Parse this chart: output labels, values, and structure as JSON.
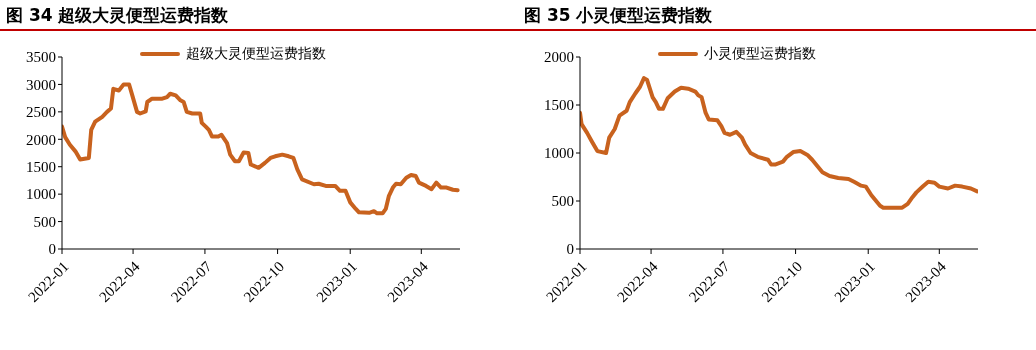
{
  "chart_data": [
    {
      "type": "line",
      "title": "图 34  超级大灵便型运费指数",
      "x": [
        "2022-01-01",
        "2022-01-05",
        "2022-01-11",
        "2022-01-18",
        "2022-01-24",
        "2022-02-04",
        "2022-02-07",
        "2022-02-12",
        "2022-02-21",
        "2022-02-27",
        "2022-03-04",
        "2022-03-07",
        "2022-03-14",
        "2022-03-20",
        "2022-03-27",
        "2022-03-31",
        "2022-04-06",
        "2022-04-10",
        "2022-04-17",
        "2022-04-19",
        "2022-04-25",
        "2022-05-08",
        "2022-05-14",
        "2022-05-18",
        "2022-05-25",
        "2022-05-31",
        "2022-06-04",
        "2022-06-08",
        "2022-06-15",
        "2022-06-25",
        "2022-06-27",
        "2022-07-02",
        "2022-07-06",
        "2022-07-10",
        "2022-07-18",
        "2022-07-22",
        "2022-07-29",
        "2022-08-02",
        "2022-08-08",
        "2022-08-13",
        "2022-08-19",
        "2022-08-25",
        "2022-08-28",
        "2022-09-07",
        "2022-09-15",
        "2022-09-22",
        "2022-09-28",
        "2022-10-07",
        "2022-10-15",
        "2022-10-21",
        "2022-10-26",
        "2022-11-01",
        "2022-11-16",
        "2022-11-22",
        "2022-12-01",
        "2022-12-13",
        "2022-12-19",
        "2022-12-26",
        "2023-01-01",
        "2023-01-08",
        "2023-01-12",
        "2023-01-25",
        "2023-01-31",
        "2023-02-04",
        "2023-02-11",
        "2023-02-15",
        "2023-02-19",
        "2023-02-24",
        "2023-02-28",
        "2023-03-06",
        "2023-03-13",
        "2023-03-19",
        "2023-03-25",
        "2023-03-29",
        "2023-04-07",
        "2023-04-14",
        "2023-04-20",
        "2023-04-26",
        "2023-05-03",
        "2023-05-11",
        "2023-05-17"
      ],
      "series": [
        {
          "name": "超级大灵便型运费指数",
          "color": "#c8621e",
          "values": [
            2230,
            2040,
            1900,
            1780,
            1630,
            1660,
            2170,
            2320,
            2410,
            2500,
            2560,
            2920,
            2890,
            3000,
            3000,
            2800,
            2500,
            2470,
            2510,
            2680,
            2740,
            2740,
            2770,
            2830,
            2800,
            2710,
            2680,
            2500,
            2470,
            2470,
            2300,
            2230,
            2170,
            2050,
            2050,
            2080,
            1930,
            1720,
            1600,
            1600,
            1760,
            1750,
            1540,
            1480,
            1570,
            1660,
            1690,
            1720,
            1690,
            1660,
            1450,
            1270,
            1180,
            1190,
            1150,
            1150,
            1060,
            1060,
            850,
            730,
            670,
            660,
            690,
            650,
            650,
            730,
            970,
            1120,
            1190,
            1180,
            1300,
            1350,
            1330,
            1210,
            1150,
            1090,
            1210,
            1120,
            1120,
            1080,
            1070
          ]
        }
      ],
      "xlim": [
        "2022-01-01",
        "2023-05-20"
      ],
      "xticks": [
        "2022-01",
        "2022-04",
        "2022-07",
        "2022-10",
        "2023-01",
        "2023-04"
      ],
      "ylim": [
        0,
        3500
      ],
      "yticks": [
        0,
        500,
        1000,
        1500,
        2000,
        2500,
        3000,
        3500
      ],
      "grid": false,
      "legend": "top",
      "marker": "none",
      "line_style": "solid"
    },
    {
      "type": "line",
      "title": "图 35 小灵便型运费指数",
      "x": [
        "2022-01-01",
        "2022-01-03",
        "2022-01-10",
        "2022-01-16",
        "2022-01-23",
        "2022-02-03",
        "2022-02-07",
        "2022-02-14",
        "2022-02-20",
        "2022-03-01",
        "2022-03-05",
        "2022-03-12",
        "2022-03-18",
        "2022-03-23",
        "2022-03-27",
        "2022-04-03",
        "2022-04-07",
        "2022-04-11",
        "2022-04-16",
        "2022-04-22",
        "2022-05-01",
        "2022-05-09",
        "2022-05-18",
        "2022-05-27",
        "2022-05-31",
        "2022-06-04",
        "2022-06-09",
        "2022-06-13",
        "2022-06-24",
        "2022-06-29",
        "2022-07-03",
        "2022-07-10",
        "2022-07-18",
        "2022-07-25",
        "2022-07-29",
        "2022-08-05",
        "2022-08-14",
        "2022-08-27",
        "2022-08-31",
        "2022-09-05",
        "2022-09-15",
        "2022-09-20",
        "2022-09-28",
        "2022-10-07",
        "2022-10-16",
        "2022-10-22",
        "2022-10-29",
        "2022-11-04",
        "2022-11-13",
        "2022-11-24",
        "2022-12-07",
        "2022-12-14",
        "2022-12-23",
        "2022-12-29",
        "2023-01-05",
        "2023-01-16",
        "2023-01-20",
        "2023-01-29",
        "2023-02-13",
        "2023-02-20",
        "2023-02-26",
        "2023-03-03",
        "2023-03-11",
        "2023-03-18",
        "2023-03-26",
        "2023-04-01",
        "2023-04-12",
        "2023-04-21",
        "2023-04-30",
        "2023-05-11",
        "2023-05-19"
      ],
      "series": [
        {
          "name": "小灵便型运费指数",
          "color": "#c8621e",
          "values": [
            1420,
            1300,
            1210,
            1120,
            1020,
            1000,
            1160,
            1250,
            1390,
            1440,
            1530,
            1620,
            1690,
            1780,
            1760,
            1580,
            1530,
            1460,
            1460,
            1570,
            1640,
            1680,
            1670,
            1640,
            1600,
            1580,
            1420,
            1350,
            1340,
            1280,
            1210,
            1190,
            1220,
            1160,
            1090,
            1000,
            960,
            930,
            880,
            880,
            910,
            960,
            1010,
            1020,
            980,
            930,
            860,
            800,
            760,
            740,
            730,
            700,
            660,
            650,
            560,
            450,
            430,
            430,
            430,
            470,
            540,
            590,
            650,
            700,
            690,
            650,
            630,
            660,
            650,
            630,
            600
          ]
        }
      ],
      "xlim": [
        "2022-01-01",
        "2023-05-20"
      ],
      "xticks": [
        "2022-01",
        "2022-04",
        "2022-07",
        "2022-10",
        "2023-01",
        "2023-04"
      ],
      "ylim": [
        0,
        2000
      ],
      "yticks": [
        0,
        500,
        1000,
        1500,
        2000
      ],
      "grid": false,
      "legend": "top",
      "marker": "none",
      "line_style": "solid"
    }
  ]
}
